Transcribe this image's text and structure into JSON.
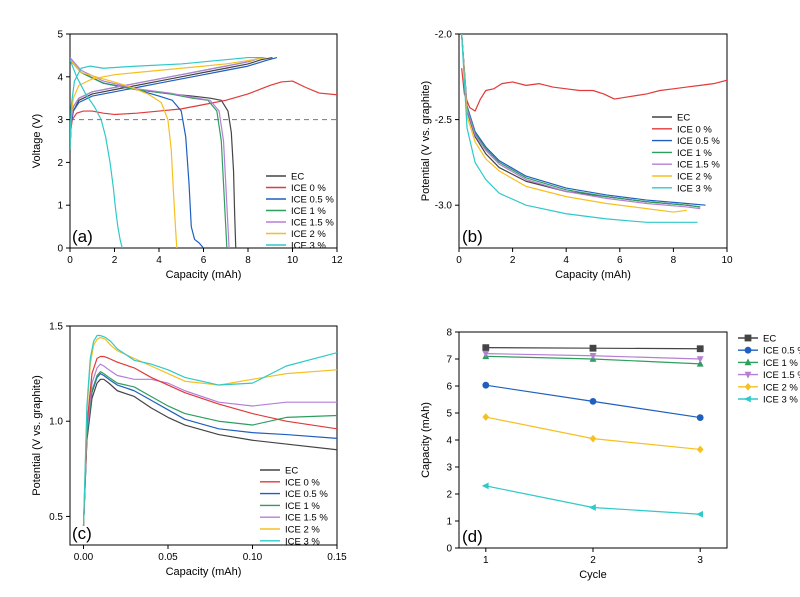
{
  "colors": {
    "EC": "#444444",
    "ICE 0 %": "#e03a3a",
    "ICE 0.5 %": "#1f5fbf",
    "ICE 1 %": "#2e9e5e",
    "ICE 1.5 %": "#b57fd6",
    "ICE 2 %": "#f5c021",
    "ICE 3 %": "#2fc9c9"
  },
  "chart_data": [
    {
      "id": "a",
      "type": "line",
      "panel_label": "(a)",
      "xlabel": "Capacity (mAh)",
      "ylabel": "Voltage (V)",
      "xlim": [
        0,
        12
      ],
      "ylim": [
        0,
        5
      ],
      "xticks": [
        0,
        2,
        4,
        6,
        8,
        10,
        12
      ],
      "yticks": [
        0,
        1,
        2,
        3,
        4,
        5
      ],
      "legend": [
        "EC",
        "ICE 0 %",
        "ICE 0.5 %",
        "ICE 1 %",
        "ICE 1.5 %",
        "ICE 2 %",
        "ICE 3 %"
      ],
      "reference_line": {
        "y": 3.0
      },
      "series": [
        {
          "name": "EC",
          "x": [
            0,
            0.05,
            0.15,
            0.4,
            1,
            2,
            3,
            4,
            5,
            6,
            7,
            8,
            8.6,
            9.1
          ],
          "y": [
            2.3,
            2.9,
            3.2,
            3.45,
            3.6,
            3.7,
            3.8,
            3.9,
            4.0,
            4.1,
            4.2,
            4.3,
            4.4,
            4.45
          ]
        },
        {
          "name": "EC",
          "x": [
            0,
            0.5,
            1.5,
            3,
            4.5,
            5.5,
            6.3,
            6.8,
            7.1,
            7.25,
            7.35,
            7.4,
            7.45
          ],
          "y": [
            4.4,
            4.1,
            3.85,
            3.7,
            3.6,
            3.55,
            3.5,
            3.45,
            3.2,
            2.7,
            1.8,
            0.8,
            0
          ]
        },
        {
          "name": "ICE 0 %",
          "x": [
            0,
            0.1,
            0.3,
            0.6,
            1,
            1.5,
            2,
            3,
            4,
            5,
            6,
            7,
            8,
            9,
            9.5,
            10,
            10.6,
            11.2,
            12
          ],
          "y": [
            2.6,
            3.0,
            3.15,
            3.2,
            3.2,
            3.15,
            3.12,
            3.15,
            3.2,
            3.25,
            3.35,
            3.45,
            3.6,
            3.8,
            3.88,
            3.9,
            3.75,
            3.62,
            3.58
          ]
        },
        {
          "name": "ICE 0.5 %",
          "x": [
            0,
            0.05,
            0.15,
            0.4,
            1,
            2,
            3,
            4,
            5,
            6,
            7,
            8,
            8.8,
            9.3
          ],
          "y": [
            2.3,
            2.9,
            3.2,
            3.4,
            3.55,
            3.65,
            3.75,
            3.85,
            3.95,
            4.05,
            4.15,
            4.25,
            4.38,
            4.45
          ]
        },
        {
          "name": "ICE 0.5 %",
          "x": [
            0,
            0.5,
            1.5,
            3,
            4,
            4.6,
            5,
            5.2,
            5.35,
            5.45,
            5.6,
            5.8,
            6.0
          ],
          "y": [
            4.4,
            4.1,
            3.85,
            3.7,
            3.55,
            3.45,
            3.2,
            2.6,
            1.5,
            0.5,
            0.2,
            0.12,
            0
          ]
        },
        {
          "name": "ICE 1 %",
          "x": [
            0,
            0.05,
            0.15,
            0.4,
            1,
            2,
            3,
            4,
            5,
            6,
            7,
            8,
            8.6
          ],
          "y": [
            2.3,
            3.0,
            3.3,
            3.5,
            3.65,
            3.75,
            3.85,
            3.95,
            4.05,
            4.15,
            4.25,
            4.35,
            4.45
          ]
        },
        {
          "name": "ICE 1 %",
          "x": [
            0,
            0.5,
            1.5,
            3,
            4.5,
            5.5,
            6.2,
            6.6,
            6.8,
            6.9,
            7.0,
            7.05
          ],
          "y": [
            4.4,
            4.1,
            3.85,
            3.7,
            3.6,
            3.5,
            3.45,
            3.2,
            2.5,
            1.5,
            0.5,
            0
          ]
        },
        {
          "name": "ICE 1.5 %",
          "x": [
            0,
            0.05,
            0.15,
            0.4,
            1,
            2,
            3,
            4,
            5,
            6,
            7,
            8,
            8.6
          ],
          "y": [
            2.3,
            3.0,
            3.3,
            3.5,
            3.65,
            3.75,
            3.85,
            3.95,
            4.05,
            4.15,
            4.25,
            4.35,
            4.45
          ]
        },
        {
          "name": "ICE 1.5 %",
          "x": [
            0,
            0.5,
            1.5,
            3,
            4.5,
            5.5,
            6.3,
            6.7,
            6.9,
            7.0,
            7.1,
            7.15
          ],
          "y": [
            4.45,
            4.15,
            3.9,
            3.72,
            3.62,
            3.52,
            3.45,
            3.2,
            2.5,
            1.5,
            0.5,
            0
          ]
        },
        {
          "name": "ICE 2 %",
          "x": [
            0,
            0.05,
            0.15,
            0.4,
            1,
            2,
            3,
            4,
            5,
            6,
            7,
            8,
            8.8
          ],
          "y": [
            2.3,
            3.1,
            3.5,
            3.8,
            3.95,
            4.05,
            4.1,
            4.15,
            4.2,
            4.25,
            4.3,
            4.38,
            4.45
          ]
        },
        {
          "name": "ICE 2 %",
          "x": [
            0,
            0.5,
            1.5,
            2.5,
            3.5,
            4.1,
            4.4,
            4.55,
            4.65,
            4.75,
            4.8
          ],
          "y": [
            4.4,
            4.1,
            3.95,
            3.8,
            3.6,
            3.4,
            3.0,
            2.3,
            1.3,
            0.4,
            0
          ]
        },
        {
          "name": "ICE 3 %",
          "x": [
            0,
            0.05,
            0.2,
            0.5,
            0.9,
            1.5,
            3,
            5,
            7,
            8,
            8.7
          ],
          "y": [
            2.3,
            3.3,
            3.9,
            4.2,
            4.25,
            4.2,
            4.25,
            4.3,
            4.4,
            4.45,
            4.45
          ]
        },
        {
          "name": "ICE 3 %",
          "x": [
            0,
            0.3,
            0.7,
            1.1,
            1.4,
            1.6,
            1.8,
            1.95,
            2.05,
            2.15,
            2.25,
            2.35
          ],
          "y": [
            4.4,
            4.0,
            3.6,
            3.3,
            3.0,
            2.6,
            2.0,
            1.4,
            0.9,
            0.5,
            0.2,
            0
          ]
        }
      ]
    },
    {
      "id": "b",
      "type": "line",
      "panel_label": "(b)",
      "xlabel": "Capacity (mAh)",
      "ylabel": "Potential (V vs. graphite)",
      "xlim": [
        0,
        10
      ],
      "ylim": [
        -3.25,
        -2.0
      ],
      "xticks": [
        0,
        2,
        4,
        6,
        8,
        10
      ],
      "yticks": [
        -2.0,
        -2.5,
        -3.0
      ],
      "ytick_labels": [
        "-2.0",
        "-2.5",
        "-3.0"
      ],
      "legend": [
        "EC",
        "ICE 0 %",
        "ICE 0.5 %",
        "ICE 1 %",
        "ICE 1.5 %",
        "ICE 2 %",
        "ICE 3 %"
      ],
      "series": [
        {
          "name": "ICE 0 %",
          "x": [
            0.1,
            0.2,
            0.4,
            0.6,
            0.8,
            1.0,
            1.3,
            1.6,
            2.0,
            2.5,
            3.0,
            3.5,
            4.0,
            4.5,
            5.0,
            5.4,
            5.8,
            6.2,
            6.6,
            7.0,
            7.5,
            8.0,
            8.5,
            9.0,
            9.5,
            10
          ],
          "y": [
            -2.2,
            -2.35,
            -2.43,
            -2.45,
            -2.38,
            -2.33,
            -2.32,
            -2.29,
            -2.28,
            -2.3,
            -2.29,
            -2.31,
            -2.32,
            -2.33,
            -2.33,
            -2.35,
            -2.38,
            -2.37,
            -2.36,
            -2.35,
            -2.33,
            -2.32,
            -2.31,
            -2.3,
            -2.29,
            -2.27
          ]
        },
        {
          "name": "EC",
          "x": [
            0.1,
            0.3,
            0.6,
            1.0,
            1.5,
            2.5,
            4,
            5.5,
            7,
            8.5,
            9.0
          ],
          "y": [
            -2.0,
            -2.45,
            -2.6,
            -2.7,
            -2.78,
            -2.86,
            -2.92,
            -2.95,
            -2.98,
            -3.0,
            -3.01
          ]
        },
        {
          "name": "ICE 0.5 %",
          "x": [
            0.1,
            0.3,
            0.6,
            1.0,
            1.5,
            2.5,
            4,
            5.5,
            7,
            8.5,
            9.2
          ],
          "y": [
            -2.0,
            -2.42,
            -2.57,
            -2.66,
            -2.74,
            -2.83,
            -2.9,
            -2.94,
            -2.97,
            -2.99,
            -3.0
          ]
        },
        {
          "name": "ICE 1 %",
          "x": [
            0.1,
            0.3,
            0.6,
            1.0,
            1.5,
            2.5,
            4,
            5.5,
            7,
            8.5,
            9.0
          ],
          "y": [
            -2.0,
            -2.43,
            -2.58,
            -2.67,
            -2.75,
            -2.84,
            -2.91,
            -2.95,
            -2.98,
            -3.0,
            -3.01
          ]
        },
        {
          "name": "ICE 1.5 %",
          "x": [
            0.1,
            0.3,
            0.6,
            1.0,
            1.5,
            2.5,
            4,
            5.5,
            7,
            8.5,
            9.0
          ],
          "y": [
            -2.0,
            -2.44,
            -2.59,
            -2.68,
            -2.76,
            -2.85,
            -2.92,
            -2.96,
            -2.99,
            -3.01,
            -3.02
          ]
        },
        {
          "name": "ICE 2 %",
          "x": [
            0.1,
            0.3,
            0.6,
            1.0,
            1.5,
            2.5,
            4,
            5.5,
            7,
            8.0,
            8.5
          ],
          "y": [
            -2.0,
            -2.48,
            -2.63,
            -2.73,
            -2.8,
            -2.89,
            -2.95,
            -2.99,
            -3.02,
            -3.04,
            -3.03
          ]
        },
        {
          "name": "ICE 3 %",
          "x": [
            0.1,
            0.3,
            0.6,
            1.0,
            1.5,
            2.5,
            4,
            5.5,
            7,
            8.0,
            8.9
          ],
          "y": [
            -2.0,
            -2.55,
            -2.75,
            -2.85,
            -2.93,
            -3.0,
            -3.05,
            -3.08,
            -3.1,
            -3.1,
            -3.1
          ]
        }
      ]
    },
    {
      "id": "c",
      "type": "line",
      "panel_label": "(c)",
      "xlabel": "Capacity (mAh)",
      "ylabel": "Potential (V vs. graphite)",
      "xlim": [
        -0.008,
        0.15
      ],
      "ylim": [
        0.35,
        1.5
      ],
      "xticks": [
        0.0,
        0.05,
        0.1,
        0.15
      ],
      "xtick_labels": [
        "0.00",
        "0.05",
        "0.10",
        "0.15"
      ],
      "yticks": [
        0.5,
        1.0,
        1.5
      ],
      "ytick_labels": [
        "0.5",
        "1.0",
        "1.5"
      ],
      "legend": [
        "EC",
        "ICE 0 %",
        "ICE 0.5 %",
        "ICE 1 %",
        "ICE 1.5 %",
        "ICE 2 %",
        "ICE 3 %"
      ],
      "series": [
        {
          "name": "EC",
          "x": [
            0,
            0.002,
            0.005,
            0.008,
            0.01,
            0.012,
            0.015,
            0.02,
            0.03,
            0.04,
            0.05,
            0.06,
            0.08,
            0.1,
            0.12,
            0.15
          ],
          "y": [
            0.45,
            0.9,
            1.12,
            1.2,
            1.22,
            1.22,
            1.2,
            1.16,
            1.13,
            1.07,
            1.02,
            0.98,
            0.93,
            0.9,
            0.88,
            0.85
          ]
        },
        {
          "name": "ICE 0.5 %",
          "x": [
            0,
            0.002,
            0.005,
            0.008,
            0.01,
            0.012,
            0.015,
            0.02,
            0.03,
            0.04,
            0.05,
            0.06,
            0.08,
            0.1,
            0.12,
            0.15
          ],
          "y": [
            0.45,
            0.92,
            1.15,
            1.23,
            1.25,
            1.24,
            1.22,
            1.19,
            1.16,
            1.11,
            1.06,
            1.01,
            0.96,
            0.94,
            0.93,
            0.91
          ]
        },
        {
          "name": "ICE 1 %",
          "x": [
            0,
            0.002,
            0.005,
            0.008,
            0.01,
            0.012,
            0.015,
            0.02,
            0.03,
            0.04,
            0.05,
            0.06,
            0.08,
            0.1,
            0.12,
            0.15
          ],
          "y": [
            0.45,
            0.93,
            1.16,
            1.24,
            1.26,
            1.25,
            1.23,
            1.2,
            1.18,
            1.13,
            1.08,
            1.04,
            1.0,
            0.98,
            1.02,
            1.03
          ]
        },
        {
          "name": "ICE 1.5 %",
          "x": [
            0,
            0.002,
            0.005,
            0.008,
            0.01,
            0.012,
            0.015,
            0.02,
            0.03,
            0.04,
            0.05,
            0.06,
            0.08,
            0.1,
            0.12,
            0.15
          ],
          "y": [
            0.45,
            0.95,
            1.2,
            1.28,
            1.3,
            1.29,
            1.27,
            1.24,
            1.22,
            1.22,
            1.2,
            1.16,
            1.1,
            1.08,
            1.1,
            1.1
          ]
        },
        {
          "name": "ICE 0 %",
          "x": [
            0,
            0.002,
            0.005,
            0.008,
            0.01,
            0.012,
            0.015,
            0.02,
            0.03,
            0.04,
            0.05,
            0.06,
            0.08,
            0.1,
            0.12,
            0.15
          ],
          "y": [
            0.45,
            0.98,
            1.25,
            1.33,
            1.34,
            1.34,
            1.33,
            1.31,
            1.28,
            1.23,
            1.19,
            1.15,
            1.09,
            1.04,
            1.0,
            0.96
          ]
        },
        {
          "name": "ICE 2 %",
          "x": [
            0,
            0.002,
            0.004,
            0.006,
            0.008,
            0.01,
            0.013,
            0.016,
            0.02,
            0.03,
            0.04,
            0.05,
            0.06,
            0.08,
            0.1,
            0.12,
            0.15
          ],
          "y": [
            0.45,
            1.05,
            1.3,
            1.4,
            1.43,
            1.44,
            1.43,
            1.4,
            1.37,
            1.33,
            1.29,
            1.25,
            1.21,
            1.19,
            1.22,
            1.25,
            1.27
          ]
        },
        {
          "name": "ICE 3 %",
          "x": [
            0,
            0.002,
            0.004,
            0.006,
            0.008,
            0.01,
            0.013,
            0.016,
            0.02,
            0.03,
            0.04,
            0.05,
            0.06,
            0.08,
            0.1,
            0.12,
            0.15
          ],
          "y": [
            0.45,
            1.08,
            1.33,
            1.42,
            1.45,
            1.45,
            1.44,
            1.42,
            1.38,
            1.32,
            1.3,
            1.27,
            1.23,
            1.19,
            1.2,
            1.29,
            1.36
          ]
        }
      ]
    },
    {
      "id": "d",
      "type": "line",
      "panel_label": "(d)",
      "xlabel": "Cycle",
      "ylabel": "Capacity (mAh)",
      "xlim": [
        0.75,
        3.25
      ],
      "ylim": [
        0,
        8
      ],
      "xticks": [
        1,
        2,
        3
      ],
      "yticks": [
        0,
        1,
        2,
        3,
        4,
        5,
        6,
        7,
        8
      ],
      "categories": [
        1,
        2,
        3
      ],
      "legend": [
        "EC",
        "ICE 0.5 %",
        "ICE 1 %",
        "ICE 1.5 %",
        "ICE 2 %",
        "ICE 3 %"
      ],
      "markers": {
        "EC": "square",
        "ICE 0.5 %": "circle",
        "ICE 1 %": "triangle-up",
        "ICE 1.5 %": "triangle-down",
        "ICE 2 %": "diamond",
        "ICE 3 %": "triangle-left"
      },
      "series": [
        {
          "name": "EC",
          "values": [
            7.42,
            7.4,
            7.38
          ]
        },
        {
          "name": "ICE 0.5 %",
          "values": [
            6.03,
            5.43,
            4.83
          ]
        },
        {
          "name": "ICE 1 %",
          "values": [
            7.1,
            7.0,
            6.82
          ]
        },
        {
          "name": "ICE 1.5 %",
          "values": [
            7.2,
            7.12,
            7.0
          ]
        },
        {
          "name": "ICE 2 %",
          "values": [
            4.85,
            4.05,
            3.65
          ]
        },
        {
          "name": "ICE 3 %",
          "values": [
            2.3,
            1.5,
            1.25
          ]
        }
      ]
    }
  ]
}
